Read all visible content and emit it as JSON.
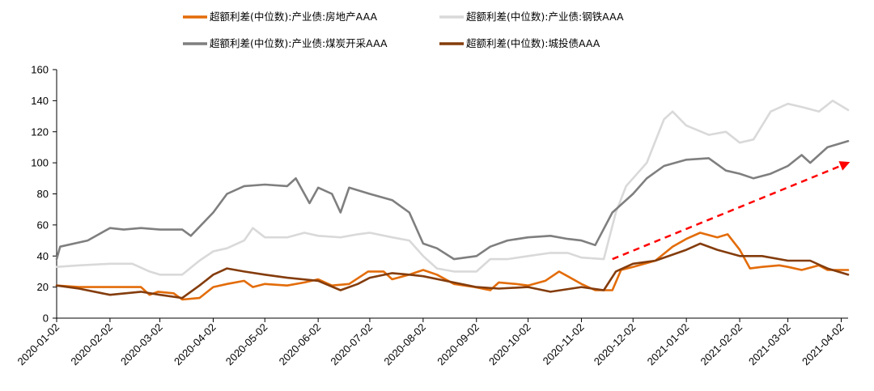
{
  "chart_data": {
    "type": "line",
    "title": "",
    "xlabel": "",
    "ylabel": "",
    "ylim": [
      0,
      160
    ],
    "yticks": [
      0,
      20,
      40,
      60,
      80,
      100,
      120,
      140,
      160
    ],
    "x_tick_labels": [
      "2020-01-02",
      "2020-02-02",
      "2020-03-02",
      "2020-04-02",
      "2020-05-02",
      "2020-06-02",
      "2020-07-02",
      "2020-08-02",
      "2020-09-02",
      "2020-10-02",
      "2020-11-02",
      "2020-12-02",
      "2021-01-02",
      "2021-02-02",
      "2021-03-02",
      "2021-04-02"
    ],
    "xlim": [
      "2020-01-02",
      "2021-04-06"
    ],
    "legend_position": "top",
    "grid": false,
    "series": [
      {
        "name": "超额利差(中位数):产业债:房地产AAA",
        "color": "#E36C09",
        "points": [
          [
            "2020-01-02",
            21
          ],
          [
            "2020-01-15",
            20
          ],
          [
            "2020-02-01",
            20
          ],
          [
            "2020-02-20",
            20
          ],
          [
            "2020-02-25",
            15
          ],
          [
            "2020-03-01",
            17
          ],
          [
            "2020-03-10",
            16
          ],
          [
            "2020-03-15",
            12
          ],
          [
            "2020-03-25",
            13
          ],
          [
            "2020-04-02",
            20
          ],
          [
            "2020-04-10",
            22
          ],
          [
            "2020-04-20",
            24
          ],
          [
            "2020-04-25",
            20
          ],
          [
            "2020-05-02",
            22
          ],
          [
            "2020-05-15",
            21
          ],
          [
            "2020-05-25",
            23
          ],
          [
            "2020-06-02",
            25
          ],
          [
            "2020-06-10",
            21
          ],
          [
            "2020-06-20",
            22
          ],
          [
            "2020-07-01",
            30
          ],
          [
            "2020-07-10",
            30
          ],
          [
            "2020-07-15",
            25
          ],
          [
            "2020-07-25",
            28
          ],
          [
            "2020-08-02",
            31
          ],
          [
            "2020-08-10",
            28
          ],
          [
            "2020-08-20",
            22
          ],
          [
            "2020-09-01",
            20
          ],
          [
            "2020-09-10",
            18
          ],
          [
            "2020-09-15",
            23
          ],
          [
            "2020-09-25",
            22
          ],
          [
            "2020-10-02",
            21
          ],
          [
            "2020-10-12",
            24
          ],
          [
            "2020-10-20",
            30
          ],
          [
            "2020-10-25",
            27
          ],
          [
            "2020-11-02",
            22
          ],
          [
            "2020-11-10",
            18
          ],
          [
            "2020-11-20",
            18
          ],
          [
            "2020-11-25",
            31
          ],
          [
            "2020-12-02",
            33
          ],
          [
            "2020-12-15",
            37
          ],
          [
            "2020-12-25",
            46
          ],
          [
            "2021-01-02",
            51
          ],
          [
            "2021-01-10",
            55
          ],
          [
            "2021-01-20",
            52
          ],
          [
            "2021-01-26",
            54
          ],
          [
            "2021-02-02",
            44
          ],
          [
            "2021-02-08",
            32
          ],
          [
            "2021-02-15",
            33
          ],
          [
            "2021-02-25",
            34
          ],
          [
            "2021-03-02",
            33
          ],
          [
            "2021-03-10",
            31
          ],
          [
            "2021-03-20",
            34
          ],
          [
            "2021-03-25",
            31
          ],
          [
            "2021-04-06",
            31
          ]
        ]
      },
      {
        "name": "超额利差(中位数):产业债:钢铁AAA",
        "color": "#D9D9D9",
        "points": [
          [
            "2020-01-02",
            33
          ],
          [
            "2020-01-15",
            34
          ],
          [
            "2020-02-02",
            35
          ],
          [
            "2020-02-15",
            35
          ],
          [
            "2020-02-25",
            30
          ],
          [
            "2020-03-02",
            28
          ],
          [
            "2020-03-15",
            28
          ],
          [
            "2020-03-25",
            37
          ],
          [
            "2020-04-02",
            43
          ],
          [
            "2020-04-10",
            45
          ],
          [
            "2020-04-20",
            50
          ],
          [
            "2020-04-25",
            58
          ],
          [
            "2020-05-02",
            52
          ],
          [
            "2020-05-15",
            52
          ],
          [
            "2020-05-25",
            55
          ],
          [
            "2020-06-02",
            53
          ],
          [
            "2020-06-15",
            52
          ],
          [
            "2020-06-25",
            54
          ],
          [
            "2020-07-02",
            55
          ],
          [
            "2020-07-15",
            52
          ],
          [
            "2020-07-25",
            50
          ],
          [
            "2020-08-02",
            40
          ],
          [
            "2020-08-10",
            32
          ],
          [
            "2020-08-20",
            30
          ],
          [
            "2020-09-02",
            30
          ],
          [
            "2020-09-10",
            38
          ],
          [
            "2020-09-20",
            38
          ],
          [
            "2020-10-02",
            40
          ],
          [
            "2020-10-15",
            42
          ],
          [
            "2020-10-25",
            42
          ],
          [
            "2020-11-02",
            39
          ],
          [
            "2020-11-15",
            38
          ],
          [
            "2020-11-22",
            68
          ],
          [
            "2020-11-28",
            85
          ],
          [
            "2020-12-02",
            90
          ],
          [
            "2020-12-10",
            100
          ],
          [
            "2020-12-20",
            128
          ],
          [
            "2020-12-25",
            133
          ],
          [
            "2021-01-02",
            124
          ],
          [
            "2021-01-15",
            118
          ],
          [
            "2021-01-25",
            120
          ],
          [
            "2021-02-02",
            113
          ],
          [
            "2021-02-10",
            115
          ],
          [
            "2021-02-20",
            133
          ],
          [
            "2021-03-02",
            138
          ],
          [
            "2021-03-10",
            136
          ],
          [
            "2021-03-20",
            133
          ],
          [
            "2021-03-28",
            140
          ],
          [
            "2021-04-06",
            134
          ]
        ]
      },
      {
        "name": "超额利差(中位数):产业债:煤炭开采AAA",
        "color": "#7F7F7F",
        "points": [
          [
            "2020-01-02",
            38
          ],
          [
            "2020-01-04",
            46
          ],
          [
            "2020-01-20",
            50
          ],
          [
            "2020-02-02",
            58
          ],
          [
            "2020-02-10",
            57
          ],
          [
            "2020-02-20",
            58
          ],
          [
            "2020-03-02",
            57
          ],
          [
            "2020-03-15",
            57
          ],
          [
            "2020-03-20",
            53
          ],
          [
            "2020-04-02",
            68
          ],
          [
            "2020-04-10",
            80
          ],
          [
            "2020-04-20",
            85
          ],
          [
            "2020-05-02",
            86
          ],
          [
            "2020-05-15",
            85
          ],
          [
            "2020-05-20",
            90
          ],
          [
            "2020-05-28",
            74
          ],
          [
            "2020-06-02",
            84
          ],
          [
            "2020-06-10",
            80
          ],
          [
            "2020-06-15",
            68
          ],
          [
            "2020-06-20",
            84
          ],
          [
            "2020-07-02",
            80
          ],
          [
            "2020-07-15",
            76
          ],
          [
            "2020-07-25",
            68
          ],
          [
            "2020-08-02",
            48
          ],
          [
            "2020-08-10",
            45
          ],
          [
            "2020-08-20",
            38
          ],
          [
            "2020-09-02",
            40
          ],
          [
            "2020-09-10",
            46
          ],
          [
            "2020-09-20",
            50
          ],
          [
            "2020-10-02",
            52
          ],
          [
            "2020-10-15",
            53
          ],
          [
            "2020-10-25",
            51
          ],
          [
            "2020-11-02",
            50
          ],
          [
            "2020-11-10",
            47
          ],
          [
            "2020-11-20",
            68
          ],
          [
            "2020-12-02",
            80
          ],
          [
            "2020-12-10",
            90
          ],
          [
            "2020-12-20",
            98
          ],
          [
            "2021-01-02",
            102
          ],
          [
            "2021-01-15",
            103
          ],
          [
            "2021-01-25",
            95
          ],
          [
            "2021-02-02",
            93
          ],
          [
            "2021-02-10",
            90
          ],
          [
            "2021-02-20",
            93
          ],
          [
            "2021-03-02",
            98
          ],
          [
            "2021-03-10",
            105
          ],
          [
            "2021-03-15",
            100
          ],
          [
            "2021-03-25",
            110
          ],
          [
            "2021-04-06",
            114
          ]
        ]
      },
      {
        "name": "超额利差(中位数):城投债AAA",
        "color": "#843C0C",
        "points": [
          [
            "2020-01-02",
            21
          ],
          [
            "2020-01-15",
            19
          ],
          [
            "2020-02-02",
            15
          ],
          [
            "2020-02-20",
            17
          ],
          [
            "2020-03-02",
            15
          ],
          [
            "2020-03-15",
            13
          ],
          [
            "2020-03-25",
            21
          ],
          [
            "2020-04-02",
            28
          ],
          [
            "2020-04-10",
            32
          ],
          [
            "2020-04-20",
            30
          ],
          [
            "2020-05-02",
            28
          ],
          [
            "2020-05-15",
            26
          ],
          [
            "2020-06-02",
            24
          ],
          [
            "2020-06-15",
            18
          ],
          [
            "2020-06-25",
            22
          ],
          [
            "2020-07-02",
            26
          ],
          [
            "2020-07-15",
            29
          ],
          [
            "2020-07-25",
            28
          ],
          [
            "2020-08-02",
            27
          ],
          [
            "2020-08-15",
            24
          ],
          [
            "2020-09-02",
            20
          ],
          [
            "2020-09-15",
            19
          ],
          [
            "2020-10-02",
            20
          ],
          [
            "2020-10-15",
            17
          ],
          [
            "2020-11-02",
            20
          ],
          [
            "2020-11-15",
            18
          ],
          [
            "2020-11-22",
            30
          ],
          [
            "2020-12-02",
            35
          ],
          [
            "2020-12-15",
            37
          ],
          [
            "2021-01-02",
            44
          ],
          [
            "2021-01-10",
            48
          ],
          [
            "2021-01-20",
            44
          ],
          [
            "2021-02-02",
            40
          ],
          [
            "2021-02-15",
            40
          ],
          [
            "2021-03-02",
            37
          ],
          [
            "2021-03-15",
            37
          ],
          [
            "2021-03-25",
            32
          ],
          [
            "2021-04-06",
            28
          ]
        ]
      }
    ],
    "annotations": [
      {
        "type": "arrow",
        "style": "dashed",
        "color": "#FF0000",
        "from": [
          "2020-11-20",
          38
        ],
        "to": [
          "2021-04-06",
          100
        ]
      }
    ]
  }
}
